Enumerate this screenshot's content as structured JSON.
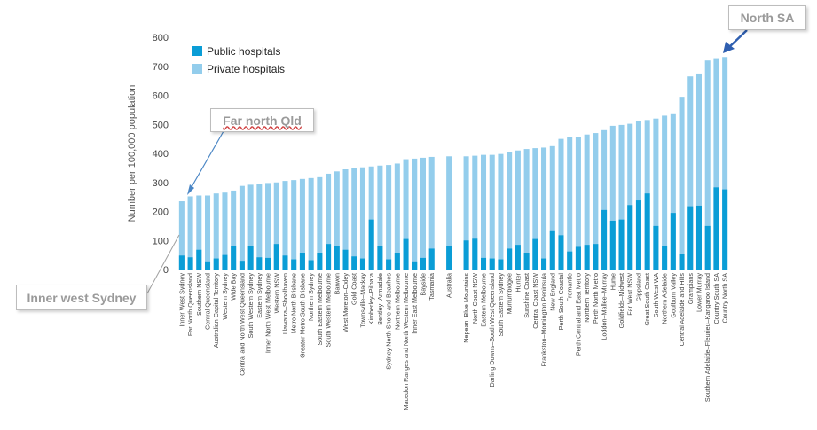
{
  "chart_data": {
    "type": "bar",
    "stacked": false,
    "overlapping": true,
    "ylabel": "Number per 100,000 population",
    "xlabel": "",
    "ylim": [
      0,
      800
    ],
    "yticks": [
      0,
      100,
      200,
      300,
      400,
      500,
      600,
      700,
      800
    ],
    "grid": false,
    "legend_position": "top-left",
    "series": [
      {
        "name": "Public hospitals",
        "color": "#0a9dd6"
      },
      {
        "name": "Private hospitals",
        "color": "#93cdec"
      }
    ],
    "categories": [
      "Inner West Sydney",
      "Far North Queensland",
      "Southern NSW",
      "Central Queensland",
      "Australian Capital Territory",
      "Western Sydney",
      "Wide Bay",
      "Central and North West Queensland",
      "South Western Sydney",
      "Eastern Sydney",
      "Inner North West Melbourne",
      "Western NSW",
      "Illawarra–Shoalhaven",
      "Metro North Brisbane",
      "Greater Metro South Brisbane",
      "Northern Sydney",
      "South Eastern Melbourne",
      "South Western Melbourne",
      "Barwon",
      "West Moreton–Oxley",
      "Gold Coast",
      "Townsville–Mackay",
      "Kimberley–Pilbara",
      "Bentley–Armadale",
      "Sydney North Shore and Beaches",
      "Northern Melbourne",
      "Macedon Ranges and North Western Melbourne",
      "Inner East Melbourne",
      "Bayside",
      "Tasmania",
      "",
      "Australia",
      "",
      "Nepean–Blue Mountains",
      "North Coast NSW",
      "Eastern Melbourne",
      "Darling Downs–South West Queensland",
      "South Eastern Sydney",
      "Murrumbidgee",
      "Hunter",
      "Sunshine Coast",
      "Central Coast NSW",
      "Frankston–Mornington Peninsula",
      "New England",
      "Perth South Coastal",
      "Fremantle",
      "Perth Central and East Metro",
      "Northern Territory",
      "Perth North Metro",
      "Loddon–Mallee–Murray",
      "Hume",
      "Goldfields–Midwest",
      "Far West NSW",
      "Gippsland",
      "Great South Coast",
      "South West WA",
      "Northern Adelaide",
      "Goulburn Valley",
      "Central Adelaide and Hills",
      "Grampians",
      "Lower Murray",
      "Southern Adelaide–Fleurieu–Kangaroo Island",
      "Country South SA",
      "Country North SA"
    ],
    "public_values": [
      48,
      42,
      68,
      28,
      38,
      50,
      80,
      30,
      80,
      42,
      40,
      88,
      48,
      35,
      58,
      32,
      58,
      88,
      80,
      68,
      45,
      38,
      172,
      82,
      35,
      58,
      105,
      28,
      40,
      72,
      null,
      80,
      null,
      100,
      106,
      40,
      38,
      35,
      72,
      85,
      58,
      105,
      38,
      135,
      118,
      62,
      78,
      85,
      88,
      205,
      168,
      172,
      222,
      238,
      262,
      150,
      82,
      195,
      52,
      218,
      220,
      150,
      283,
      276
    ],
    "private_values": [
      235,
      252,
      255,
      255,
      262,
      265,
      272,
      288,
      292,
      295,
      298,
      300,
      305,
      308,
      312,
      315,
      318,
      330,
      338,
      345,
      350,
      352,
      355,
      358,
      360,
      365,
      380,
      382,
      385,
      388,
      null,
      390,
      null,
      390,
      392,
      395,
      395,
      398,
      405,
      410,
      415,
      418,
      420,
      425,
      450,
      455,
      458,
      465,
      470,
      480,
      495,
      498,
      502,
      510,
      515,
      520,
      530,
      535,
      595,
      665,
      675,
      720,
      728,
      732
    ]
  },
  "annotations": {
    "far_north": "Far north Qld",
    "inner_west": "Inner west Sydney",
    "north_sa": "North SA"
  }
}
